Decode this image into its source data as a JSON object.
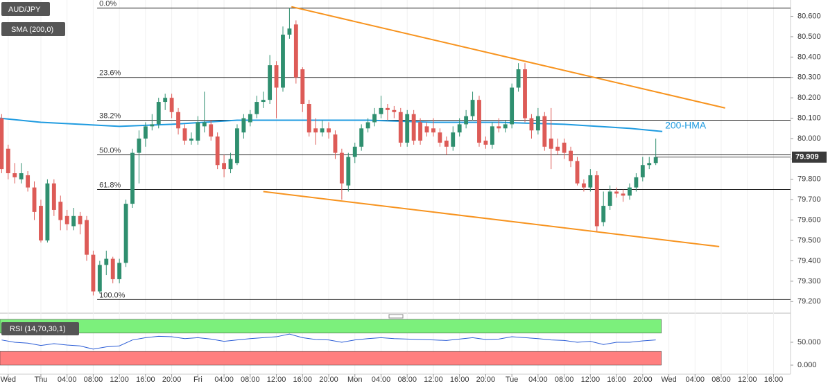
{
  "chart_data": {
    "type": "candlestick",
    "symbol": "AUD/JPY",
    "indicator": "SMA (200,0)",
    "colors": {
      "up": "#2f8f6f",
      "down": "#dd5b57",
      "fib": "#222222",
      "trend": "#f7931e",
      "hma": "#1f9be0",
      "rsi": "#2a5cd6",
      "overbought": "#7cf07c",
      "oversold": "#ff7f7f"
    },
    "xlim": [
      -6.25,
      114.6
    ],
    "xticks": [
      {
        "value": -5,
        "label": "Wed"
      },
      {
        "value": 0,
        "label": "Thu"
      },
      {
        "value": 4,
        "label": "04:00"
      },
      {
        "value": 8,
        "label": "08:00"
      },
      {
        "value": 12,
        "label": "12:00"
      },
      {
        "value": 16,
        "label": "16:00"
      },
      {
        "value": 20,
        "label": "20:00"
      },
      {
        "value": 24,
        "label": "Fri"
      },
      {
        "value": 28,
        "label": "04:00"
      },
      {
        "value": 32,
        "label": "08:00"
      },
      {
        "value": 36,
        "label": "12:00"
      },
      {
        "value": 40,
        "label": "16:00"
      },
      {
        "value": 44,
        "label": "20:00"
      },
      {
        "value": 48,
        "label": "Mon"
      },
      {
        "value": 52,
        "label": "04:00"
      },
      {
        "value": 56,
        "label": "08:00"
      },
      {
        "value": 60,
        "label": "12:00"
      },
      {
        "value": 64,
        "label": "16:00"
      },
      {
        "value": 68,
        "label": "20:00"
      },
      {
        "value": 72,
        "label": "Tue"
      },
      {
        "value": 76,
        "label": "04:00"
      },
      {
        "value": 80,
        "label": "08:00"
      },
      {
        "value": 84,
        "label": "12:00"
      },
      {
        "value": 88,
        "label": "16:00"
      },
      {
        "value": 92,
        "label": "20:00"
      },
      {
        "value": 96,
        "label": "Wed"
      },
      {
        "value": 100,
        "label": "04:00"
      },
      {
        "value": 104,
        "label": "08:00"
      },
      {
        "value": 108,
        "label": "12:00"
      },
      {
        "value": 112,
        "label": "16:00"
      }
    ],
    "ylim": [
      79.15,
      80.68
    ],
    "yticks": [
      {
        "value": 80.6,
        "label": "80.600"
      },
      {
        "value": 80.5,
        "label": "80.500"
      },
      {
        "value": 80.4,
        "label": "80.400"
      },
      {
        "value": 80.3,
        "label": "80.300"
      },
      {
        "value": 80.2,
        "label": "80.200"
      },
      {
        "value": 80.1,
        "label": "80.100"
      },
      {
        "value": 80.0,
        "label": "80.000"
      },
      {
        "value": 79.9,
        "label": "79.900"
      },
      {
        "value": 79.8,
        "label": "79.800"
      },
      {
        "value": 79.7,
        "label": "79.700"
      },
      {
        "value": 79.6,
        "label": "79.600"
      },
      {
        "value": 79.5,
        "label": "79.500"
      },
      {
        "value": 79.4,
        "label": "79.400"
      },
      {
        "value": 79.3,
        "label": "79.300"
      },
      {
        "value": 79.2,
        "label": "79.200"
      }
    ],
    "last_price": 79.909,
    "x": [
      -6,
      -5,
      -4,
      -3,
      -2,
      -1,
      0,
      1,
      2,
      3,
      4,
      5,
      6,
      7,
      8,
      9,
      10,
      11,
      12,
      13,
      14,
      15,
      16,
      17,
      18,
      19,
      20,
      21,
      22,
      23,
      24,
      25,
      26,
      27,
      28,
      29,
      30,
      31,
      32,
      33,
      34,
      35,
      36,
      37,
      38,
      39,
      40,
      41,
      42,
      43,
      44,
      45,
      46,
      47,
      48,
      49,
      50,
      51,
      52,
      53,
      54,
      55,
      56,
      57,
      58,
      59,
      60,
      61,
      62,
      63,
      64,
      65,
      66,
      67,
      68,
      69,
      70,
      71,
      72,
      73,
      74,
      75,
      76,
      77,
      78,
      79,
      80,
      81,
      82,
      83,
      84,
      85,
      86,
      87,
      88,
      89,
      90,
      91,
      92,
      93,
      94
    ],
    "open": [
      80.1,
      79.95,
      79.83,
      79.8,
      79.82,
      79.76,
      79.67,
      79.5,
      79.78,
      79.69,
      79.62,
      79.57,
      79.62,
      79.6,
      79.43,
      79.25,
      79.38,
      79.41,
      79.31,
      79.39,
      79.68,
      79.93,
      80.0,
      80.06,
      80.07,
      80.18,
      80.2,
      80.13,
      80.05,
      79.99,
      79.99,
      80.06,
      80.07,
      80.01,
      79.88,
      79.85,
      79.88,
      80.03,
      80.08,
      80.12,
      80.18,
      80.19,
      80.36,
      80.25,
      80.51,
      80.56,
      80.34,
      80.17,
      80.05,
      80.03,
      80.05,
      80.02,
      79.93,
      79.77,
      79.91,
      79.96,
      80.05,
      80.08,
      80.12,
      80.15,
      80.14,
      80.13,
      79.98,
      80.12,
      80.08,
      80.06,
      80.05,
      80.03,
      79.99,
      79.96,
      80.03,
      80.07,
      80.11,
      80.19,
      79.99,
      79.97,
      80.06,
      80.05,
      80.07,
      80.25,
      80.34,
      80.1,
      80.04,
      80.11,
      80.0,
      79.96,
      79.98,
      79.94,
      79.89,
      79.78,
      79.76,
      79.82,
      79.59,
      79.67,
      79.74,
      79.73,
      79.72,
      79.76,
      79.81,
      79.87,
      79.88
    ],
    "high": [
      80.12,
      79.97,
      79.88,
      79.88,
      79.84,
      79.79,
      79.7,
      79.8,
      79.8,
      79.72,
      79.65,
      79.66,
      79.64,
      79.62,
      79.45,
      79.4,
      79.45,
      79.42,
      79.41,
      79.7,
      79.95,
      80.04,
      80.08,
      80.12,
      80.2,
      80.22,
      80.22,
      80.15,
      80.07,
      80.03,
      80.11,
      80.23,
      80.09,
      80.03,
      79.92,
      79.93,
      80.07,
      80.12,
      80.14,
      80.21,
      80.23,
      80.41,
      80.38,
      80.55,
      80.64,
      80.58,
      80.35,
      80.19,
      80.1,
      80.09,
      80.08,
      80.04,
      79.95,
      79.93,
      79.98,
      80.07,
      80.1,
      80.15,
      80.21,
      80.17,
      80.16,
      80.15,
      80.14,
      80.14,
      80.1,
      80.08,
      80.1,
      80.05,
      80.01,
      80.06,
      80.1,
      80.14,
      80.23,
      80.21,
      80.01,
      80.08,
      80.1,
      80.09,
      80.27,
      80.37,
      80.37,
      80.12,
      80.15,
      80.13,
      80.15,
      80.0,
      80.0,
      79.96,
      79.91,
      79.8,
      79.85,
      79.84,
      79.74,
      79.77,
      79.76,
      79.75,
      79.78,
      79.83,
      79.91,
      79.91,
      80.0
    ],
    "low": [
      79.83,
      79.8,
      79.78,
      79.78,
      79.74,
      79.6,
      79.49,
      79.49,
      79.62,
      79.55,
      79.55,
      79.55,
      79.53,
      79.4,
      79.23,
      79.24,
      79.33,
      79.29,
      79.29,
      79.37,
      79.66,
      79.78,
      79.96,
      80.04,
      80.05,
      80.14,
      80.1,
      80.02,
      79.97,
      79.97,
      79.97,
      80.03,
      79.99,
      79.85,
      79.81,
      79.83,
      79.87,
      80.0,
      80.06,
      80.1,
      80.15,
      80.17,
      80.1,
      80.23,
      80.49,
      80.27,
      80.13,
      80.01,
      79.97,
      80.01,
      80.0,
      79.9,
      79.7,
      79.74,
      79.88,
      79.94,
      80.03,
      80.06,
      80.1,
      80.09,
      80.1,
      79.96,
      79.96,
      79.97,
      79.97,
      80.01,
      80.01,
      79.96,
      79.92,
      79.94,
      80.01,
      80.05,
      80.09,
      79.96,
      79.95,
      79.95,
      80.03,
      80.03,
      80.05,
      80.23,
      80.08,
      80.0,
      80.02,
      79.94,
      79.85,
      79.92,
      79.9,
      79.86,
      79.77,
      79.74,
      79.74,
      79.54,
      79.57,
      79.65,
      79.71,
      79.69,
      79.7,
      79.74,
      79.79,
      79.85,
      79.87
    ],
    "close": [
      79.85,
      79.83,
      79.81,
      79.83,
      79.76,
      79.64,
      79.5,
      79.78,
      79.65,
      79.6,
      79.58,
      79.62,
      79.58,
      79.43,
      79.25,
      79.38,
      79.41,
      79.31,
      79.39,
      79.68,
      79.93,
      80.0,
      80.06,
      80.07,
      80.18,
      80.2,
      80.13,
      80.05,
      79.99,
      80.0,
      80.08,
      80.08,
      80.01,
      79.87,
      79.85,
      79.9,
      80.05,
      80.1,
      80.12,
      80.18,
      80.19,
      80.36,
      80.25,
      80.51,
      80.54,
      80.3,
      80.17,
      80.03,
      80.03,
      80.05,
      80.03,
      79.93,
      79.78,
      79.91,
      79.96,
      80.05,
      80.08,
      80.12,
      80.15,
      80.14,
      80.13,
      79.98,
      80.12,
      79.99,
      79.99,
      80.03,
      80.03,
      79.98,
      79.96,
      80.03,
      80.07,
      80.11,
      80.19,
      79.98,
      79.97,
      80.06,
      80.05,
      80.07,
      80.25,
      80.34,
      80.1,
      80.04,
      80.11,
      79.96,
      79.95,
      79.94,
      79.93,
      79.89,
      79.78,
      79.76,
      79.82,
      79.57,
      79.67,
      79.74,
      79.73,
      79.72,
      79.76,
      79.81,
      79.87,
      79.88,
      79.909
    ],
    "fib_levels": [
      {
        "label": "0.0%",
        "value": 80.64
      },
      {
        "label": "23.6%",
        "value": 80.3
      },
      {
        "label": "38.2%",
        "value": 80.09
      },
      {
        "label": "50.0%",
        "value": 79.92
      },
      {
        "label": "61.8%",
        "value": 79.75
      },
      {
        "label": "100.0%",
        "value": 79.21
      }
    ],
    "fib_start": 8.6,
    "trendlines": [
      {
        "x": [
          38.3,
          104.6
        ],
        "y": [
          80.647,
          80.15
        ]
      },
      {
        "x": [
          34.0,
          103.7
        ],
        "y": [
          79.74,
          79.47
        ]
      }
    ],
    "hma": {
      "name": "200-HMA",
      "x": [
        -6.25,
        0,
        12,
        20,
        30,
        40,
        50,
        60,
        70,
        80,
        90,
        95
      ],
      "values": [
        80.1,
        80.08,
        80.06,
        80.07,
        80.09,
        80.09,
        80.09,
        80.08,
        80.08,
        80.07,
        80.05,
        80.035
      ]
    },
    "rsi": {
      "name": "RSI (14,70,30,1)",
      "ylim": [
        -19.7,
        104.5
      ],
      "bands": [
        [
          70,
          100
        ],
        [
          0,
          30
        ]
      ],
      "yticks": [
        {
          "value": 50,
          "label": "50.000"
        },
        {
          "value": 0,
          "label": "0.000"
        }
      ],
      "x": [
        -6,
        -4,
        -2,
        0,
        2,
        4,
        6,
        8,
        10,
        12,
        14,
        16,
        18,
        20,
        22,
        24,
        26,
        28,
        30,
        32,
        34,
        36,
        38,
        40,
        42,
        44,
        46,
        48,
        50,
        52,
        54,
        56,
        58,
        60,
        62,
        64,
        66,
        68,
        70,
        72,
        74,
        76,
        78,
        80,
        82,
        84,
        86,
        88,
        90,
        92,
        94
      ],
      "values": [
        55,
        50,
        48,
        43,
        47,
        44,
        42,
        35,
        40,
        42,
        55,
        60,
        63,
        62,
        58,
        60,
        57,
        52,
        55,
        58,
        60,
        62,
        68,
        60,
        56,
        55,
        50,
        55,
        58,
        60,
        58,
        57,
        56,
        55,
        54,
        57,
        60,
        56,
        57,
        62,
        60,
        58,
        55,
        54,
        50,
        52,
        45,
        50,
        50,
        53,
        55
      ]
    }
  }
}
